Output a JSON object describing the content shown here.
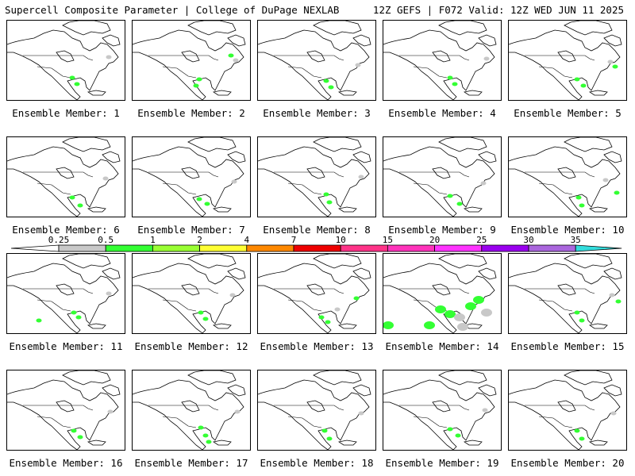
{
  "header": {
    "left_title": "Supercell Composite Parameter | College of DuPage NEXLAB",
    "right_title": "12Z GEFS | F072 Valid: 12Z WED JUN 11 2025"
  },
  "colorbar": {
    "levels": [
      "0.25",
      "0.5",
      "1",
      "2",
      "4",
      "7",
      "10",
      "15",
      "20",
      "25",
      "30",
      "35"
    ],
    "colors": [
      "#c8c8c8",
      "#33ff33",
      "#99ff33",
      "#ffff33",
      "#ff8800",
      "#ee0000",
      "#ff3388",
      "#ff33bb",
      "#ff33ff",
      "#9900ee",
      "#aa66dd",
      "#33dddd"
    ]
  },
  "panels": [
    {
      "label": "Ensemble Member: 1"
    },
    {
      "label": "Ensemble Member: 2"
    },
    {
      "label": "Ensemble Member: 3"
    },
    {
      "label": "Ensemble Member: 4"
    },
    {
      "label": "Ensemble Member: 5"
    },
    {
      "label": "Ensemble Member: 6"
    },
    {
      "label": "Ensemble Member: 7"
    },
    {
      "label": "Ensemble Member: 8"
    },
    {
      "label": "Ensemble Member: 9"
    },
    {
      "label": "Ensemble Member: 10"
    },
    {
      "label": "Ensemble Member: 11"
    },
    {
      "label": "Ensemble Member: 12"
    },
    {
      "label": "Ensemble Member: 13"
    },
    {
      "label": "Ensemble Member: 14"
    },
    {
      "label": "Ensemble Member: 15"
    },
    {
      "label": "Ensemble Member: 16"
    },
    {
      "label": "Ensemble Member: 17"
    },
    {
      "label": "Ensemble Member: 18"
    },
    {
      "label": "Ensemble Member: 19"
    },
    {
      "label": "Ensemble Member: 20"
    }
  ]
}
